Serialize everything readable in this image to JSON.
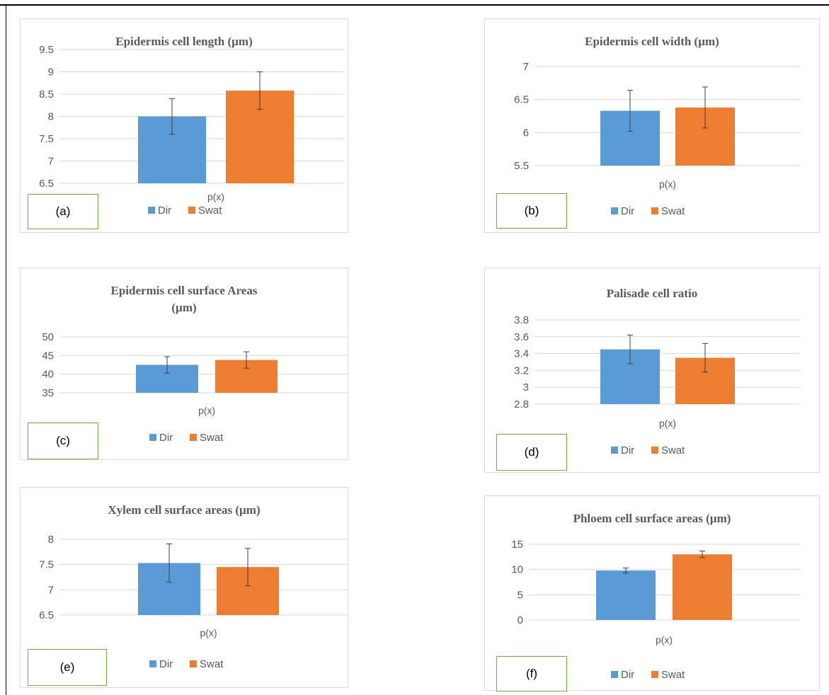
{
  "chart_data": [
    {
      "type": "bar",
      "panel_label": "(a)",
      "title_lines": [
        "Epidermis  cell length (µm)"
      ],
      "categories": [
        "p(x)"
      ],
      "series": [
        {
          "name": "Dir",
          "values": [
            8.0
          ],
          "error": [
            0.4
          ]
        },
        {
          "name": "Swat",
          "values": [
            8.58
          ],
          "error": [
            0.42
          ]
        }
      ],
      "ylim": [
        6.5,
        9.5
      ],
      "yticks": [
        "6.5",
        "7",
        "7.5",
        "8",
        "8.5",
        "9",
        "9.5"
      ],
      "grid": true,
      "legend": "bottom"
    },
    {
      "type": "bar",
      "panel_label": "(b)",
      "title_lines": [
        "Epidermis  cell width (µm)"
      ],
      "categories": [
        "p(x)"
      ],
      "series": [
        {
          "name": "Dir",
          "values": [
            6.33
          ],
          "error": [
            0.31
          ]
        },
        {
          "name": "Swat",
          "values": [
            6.38
          ],
          "error": [
            0.31
          ]
        }
      ],
      "ylim": [
        5.5,
        7
      ],
      "yticks": [
        "5.5",
        "6",
        "6.5",
        "7"
      ],
      "grid": true,
      "legend": "bottom"
    },
    {
      "type": "bar",
      "panel_label": "(c)",
      "title_lines": [
        "Epidermis  cell surface  Areas",
        "(µm)"
      ],
      "categories": [
        "p(x)"
      ],
      "series": [
        {
          "name": "Dir",
          "values": [
            42.5
          ],
          "error": [
            2.2
          ]
        },
        {
          "name": "Swat",
          "values": [
            43.8
          ],
          "error": [
            2.2
          ]
        }
      ],
      "ylim": [
        35,
        50
      ],
      "yticks": [
        "35",
        "40",
        "45",
        "50"
      ],
      "grid": true,
      "legend": "bottom"
    },
    {
      "type": "bar",
      "panel_label": "(d)",
      "title_lines": [
        "Palisade cell ratio"
      ],
      "categories": [
        "p(x)"
      ],
      "series": [
        {
          "name": "Dir",
          "values": [
            3.45
          ],
          "error": [
            0.17
          ]
        },
        {
          "name": "Swat",
          "values": [
            3.35
          ],
          "error": [
            0.17
          ]
        }
      ],
      "ylim": [
        2.8,
        3.8
      ],
      "yticks": [
        "2.8",
        "3",
        "3.2",
        "3.4",
        "3.6",
        "3.8"
      ],
      "grid": true,
      "legend": "bottom"
    },
    {
      "type": "bar",
      "panel_label": "(e)",
      "title_lines": [
        "Xylem cell surface areas (µm)"
      ],
      "categories": [
        "p(x)"
      ],
      "series": [
        {
          "name": "Dir",
          "values": [
            7.53
          ],
          "error": [
            0.38
          ]
        },
        {
          "name": "Swat",
          "values": [
            7.45
          ],
          "error": [
            0.37
          ]
        }
      ],
      "ylim": [
        6.5,
        8
      ],
      "yticks": [
        "6.5",
        "7",
        "7.5",
        "8"
      ],
      "grid": true,
      "legend": "bottom"
    },
    {
      "type": "bar",
      "panel_label": "(f)",
      "title_lines": [
        "Phloem cell surface areas (µm)"
      ],
      "categories": [
        "p(x)"
      ],
      "series": [
        {
          "name": "Dir",
          "values": [
            9.8
          ],
          "error": [
            0.5
          ]
        },
        {
          "name": "Swat",
          "values": [
            13.0
          ],
          "error": [
            0.65
          ]
        }
      ],
      "ylim": [
        0,
        15
      ],
      "yticks": [
        "0",
        "5",
        "10",
        "15"
      ],
      "grid": true,
      "legend": "bottom"
    }
  ],
  "colors": {
    "Dir": "#5b9bd5",
    "Swat": "#ed7d31",
    "grid": "#d9d9d9",
    "error_bar": "#404040",
    "label_border": "#70ad47"
  }
}
